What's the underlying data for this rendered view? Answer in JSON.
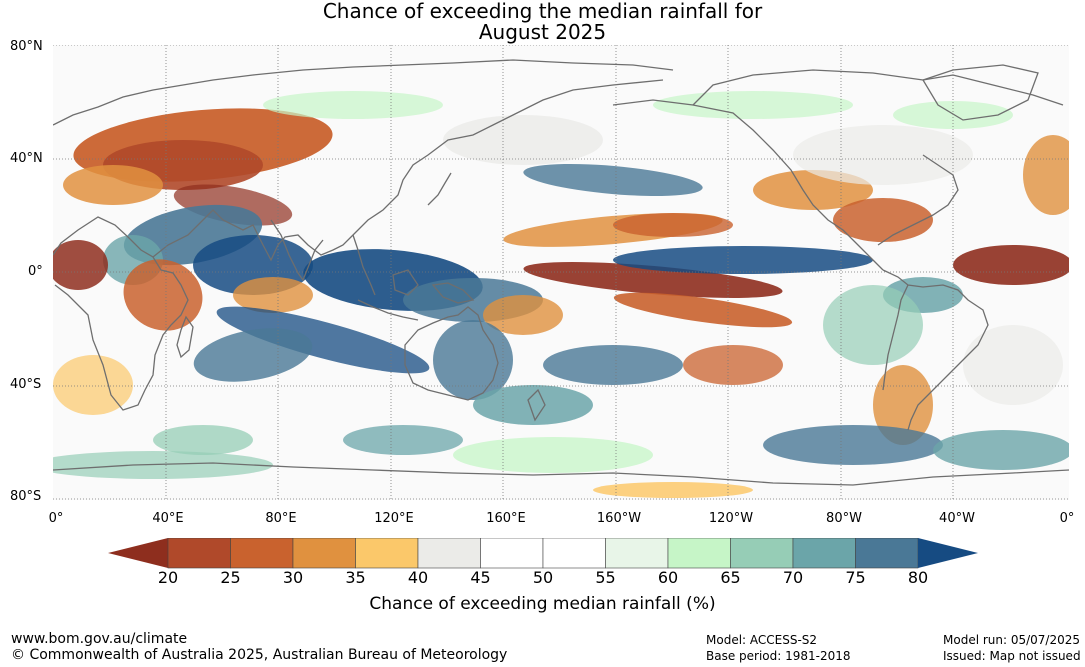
{
  "title_line1": "Chance of exceeding the median rainfall for",
  "title_line2": "August 2025",
  "lat_labels": [
    "80°N",
    "40°N",
    "0°",
    "40°S",
    "80°S"
  ],
  "lon_labels": [
    "0°",
    "40°E",
    "80°E",
    "120°E",
    "160°E",
    "160°W",
    "120°W",
    "80°W",
    "40°W",
    "0°"
  ],
  "colorbar": {
    "ticks": [
      "20",
      "25",
      "30",
      "35",
      "40",
      "45",
      "50",
      "55",
      "60",
      "65",
      "70",
      "75",
      "80"
    ],
    "colors": [
      "#b0492a",
      "#c9622e",
      "#e0913f",
      "#fbc86a",
      "#ebebe8",
      "#ffffff",
      "#ffffff",
      "#e8f5e8",
      "#c6f5c7",
      "#96cdb6",
      "#6ba5a9",
      "#4a7896"
    ],
    "low_color": "#8e2e1e",
    "high_color": "#164b82",
    "label": "Chance of exceeding median rainfall (%)"
  },
  "footer": {
    "url": "www.bom.gov.au/climate",
    "copyright": "© Commonwealth of Australia 2025, Australian Bureau of Meteorology",
    "model": "Model: ACCESS-S2",
    "base_period": "Base period: 1981-2018",
    "model_run": "Model run: 05/07/2025",
    "issued": "Issued: Map not issued"
  }
}
